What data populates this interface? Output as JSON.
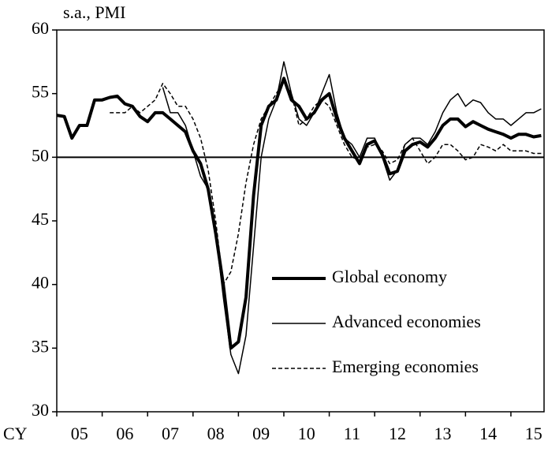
{
  "chart_data": {
    "type": "line",
    "ylabel": "s.a., PMI",
    "xlabel": "CY",
    "x": [
      2005,
      2005.167,
      2005.333,
      2005.5,
      2005.667,
      2005.833,
      2006,
      2006.167,
      2006.333,
      2006.5,
      2006.667,
      2006.833,
      2007,
      2007.167,
      2007.333,
      2007.5,
      2007.667,
      2007.833,
      2008,
      2008.167,
      2008.333,
      2008.5,
      2008.667,
      2008.833,
      2009,
      2009.167,
      2009.333,
      2009.5,
      2009.667,
      2009.833,
      2010,
      2010.167,
      2010.333,
      2010.5,
      2010.667,
      2010.833,
      2011,
      2011.167,
      2011.333,
      2011.5,
      2011.667,
      2011.833,
      2012,
      2012.167,
      2012.333,
      2012.5,
      2012.667,
      2012.833,
      2013,
      2013.167,
      2013.333,
      2013.5,
      2013.667,
      2013.833,
      2014,
      2014.167,
      2014.333,
      2014.5,
      2014.667,
      2014.833,
      2015,
      2015.167,
      2015.333,
      2015.5,
      2015.667
    ],
    "series": [
      {
        "name": "Global economy",
        "color": "#000000",
        "width": 4,
        "dash": false,
        "values": [
          53.3,
          53.2,
          51.5,
          52.5,
          52.5,
          54.5,
          54.5,
          54.7,
          54.8,
          54.2,
          54.0,
          53.2,
          52.8,
          53.5,
          53.5,
          53.0,
          52.5,
          52.0,
          50.5,
          49.5,
          47.5,
          44,
          40,
          35,
          35.5,
          39,
          47,
          52.5,
          54,
          54.5,
          56.2,
          54.5,
          54.0,
          53.0,
          53.5,
          54.5,
          55,
          53,
          51.5,
          50.5,
          49.5,
          51,
          51.3,
          50.2,
          48.7,
          48.9,
          50.5,
          51.0,
          51.2,
          50.8,
          51.5,
          52.5,
          53.0,
          53.0,
          52.4,
          52.8,
          52.5,
          52.2,
          52.0,
          51.8,
          51.5,
          51.8,
          51.8,
          51.6,
          51.7
        ]
      },
      {
        "name": "Advanced economies",
        "color": "#000000",
        "width": 1.5,
        "dash": false,
        "values": [
          null,
          null,
          null,
          null,
          null,
          null,
          null,
          null,
          null,
          null,
          null,
          null,
          null,
          null,
          55.5,
          53.5,
          53.5,
          52.5,
          50.5,
          48.5,
          47.5,
          44,
          39,
          34.5,
          33,
          36,
          43,
          50,
          53,
          54.5,
          57.5,
          55,
          53,
          52.5,
          53.5,
          55,
          56.5,
          53.5,
          51.5,
          51,
          50,
          51.5,
          51.5,
          50,
          48.2,
          49,
          51,
          51.5,
          51.5,
          51,
          52,
          53.5,
          54.5,
          55,
          54,
          54.5,
          54.3,
          53.5,
          53,
          53,
          52.5,
          53,
          53.5,
          53.5,
          53.8
        ]
      },
      {
        "name": "Emerging economies",
        "color": "#000000",
        "width": 1.5,
        "dash": true,
        "values": [
          null,
          null,
          null,
          null,
          null,
          null,
          null,
          53.5,
          53.5,
          53.5,
          54,
          53.5,
          54,
          54.5,
          55.8,
          55,
          54,
          54,
          53,
          51.5,
          49,
          45,
          40,
          41,
          44,
          48,
          51,
          53,
          54,
          55,
          56,
          55,
          52.5,
          53,
          54,
          54.5,
          54,
          52.5,
          51,
          50,
          49.8,
          50.8,
          51,
          50.5,
          49.5,
          49.8,
          51,
          51.5,
          50.5,
          49.5,
          50,
          51,
          51,
          50.5,
          49.8,
          50,
          51,
          50.8,
          50.5,
          51,
          50.5,
          50.5,
          50.5,
          50.3,
          50.3
        ]
      }
    ],
    "xlim": [
      2005,
      2015.73
    ],
    "xticks": [
      {
        "value": 2005.5,
        "label": "05"
      },
      {
        "value": 2006.5,
        "label": "06"
      },
      {
        "value": 2007.5,
        "label": "07"
      },
      {
        "value": 2008.5,
        "label": "08"
      },
      {
        "value": 2009.5,
        "label": "09"
      },
      {
        "value": 2010.5,
        "label": "10"
      },
      {
        "value": 2011.5,
        "label": "11"
      },
      {
        "value": 2012.5,
        "label": "12"
      },
      {
        "value": 2013.5,
        "label": "13"
      },
      {
        "value": 2014.5,
        "label": "14"
      },
      {
        "value": 2015.5,
        "label": "15"
      }
    ],
    "xminor_ticks": [
      2005,
      2006,
      2007,
      2008,
      2009,
      2010,
      2011,
      2012,
      2013,
      2014,
      2015
    ],
    "ylim": [
      30,
      60
    ],
    "yticks": [
      30,
      35,
      40,
      45,
      50,
      55,
      60
    ],
    "hline": 50,
    "grid": false,
    "legend": "lower right"
  }
}
